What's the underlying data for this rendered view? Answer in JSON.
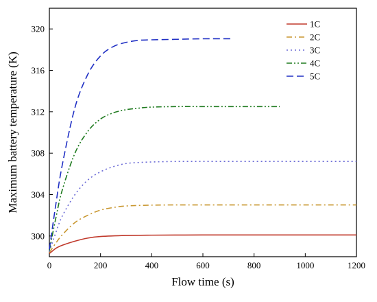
{
  "chart_data": {
    "type": "line",
    "xlabel": "Flow time (s)",
    "ylabel": "Maximum battery temperature (K)",
    "xlim": [
      0,
      1200
    ],
    "ylim": [
      298,
      322
    ],
    "xticks": [
      0,
      200,
      400,
      600,
      800,
      1000,
      1200
    ],
    "yticks": [
      300,
      304,
      308,
      312,
      316,
      320
    ],
    "xtick_labels": [
      "0",
      "200",
      "400",
      "600",
      "800",
      "1000",
      "1200"
    ],
    "ytick_labels": [
      "300",
      "304",
      "308",
      "312",
      "316",
      "320"
    ],
    "grid": false,
    "legend_position": "top-right",
    "series": [
      {
        "name": "1C",
        "color": "#c0392b",
        "dash": "solid",
        "x": [
          0,
          25,
          50,
          100,
          150,
          200,
          300,
          400,
          600,
          800,
          1000,
          1200
        ],
        "y": [
          298.3,
          298.8,
          299.1,
          299.5,
          299.8,
          299.95,
          300.05,
          300.08,
          300.1,
          300.1,
          300.1,
          300.1
        ]
      },
      {
        "name": "2C",
        "color": "#c8962e",
        "dash": "dashdot",
        "x": [
          0,
          25,
          50,
          100,
          150,
          200,
          250,
          300,
          400,
          500,
          600,
          800,
          1000,
          1200
        ],
        "y": [
          298.4,
          299.3,
          300.1,
          301.3,
          302.0,
          302.5,
          302.75,
          302.9,
          302.98,
          303.0,
          303.0,
          303.0,
          303.0,
          303.0
        ]
      },
      {
        "name": "3C",
        "color": "#6a6ad6",
        "dash": "dotted",
        "x": [
          0,
          25,
          50,
          100,
          150,
          200,
          250,
          300,
          350,
          400,
          500,
          600,
          800,
          1000,
          1200
        ],
        "y": [
          298.5,
          300.3,
          301.9,
          304.0,
          305.4,
          306.2,
          306.7,
          307.0,
          307.1,
          307.15,
          307.2,
          307.2,
          307.2,
          307.2,
          307.2
        ]
      },
      {
        "name": "4C",
        "color": "#1e7a1e",
        "dash": "dashdotdot",
        "x": [
          0,
          25,
          50,
          100,
          150,
          200,
          250,
          300,
          350,
          400,
          500,
          600,
          700,
          800,
          900
        ],
        "y": [
          298.6,
          301.7,
          304.4,
          308.0,
          310.1,
          311.3,
          311.9,
          312.2,
          312.35,
          312.45,
          312.5,
          312.5,
          312.5,
          312.5,
          312.5
        ]
      },
      {
        "name": "5C",
        "color": "#1f2fc4",
        "dash": "dashed",
        "x": [
          0,
          25,
          50,
          100,
          150,
          200,
          250,
          300,
          350,
          400,
          500,
          600,
          720
        ],
        "y": [
          298.7,
          303.0,
          306.8,
          312.4,
          315.6,
          317.4,
          318.3,
          318.7,
          318.9,
          318.95,
          319.0,
          319.05,
          319.05
        ]
      }
    ]
  }
}
